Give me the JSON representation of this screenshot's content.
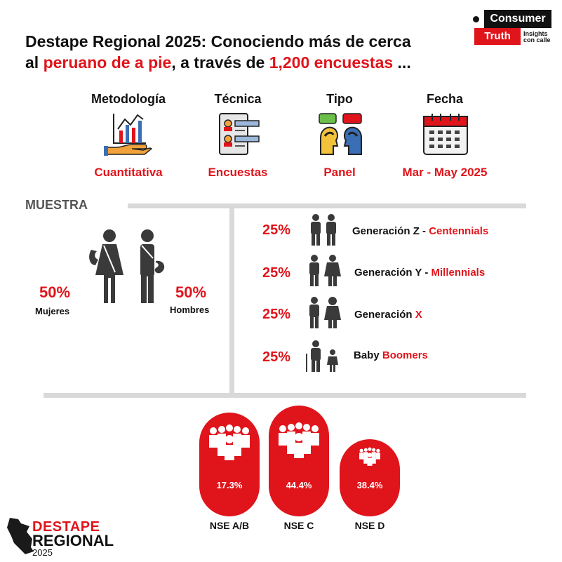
{
  "title": {
    "line1": "Destape Regional 2025: Conociendo más de cerca",
    "line2_pre": "al ",
    "line2_red1": "peruano de a pie",
    "line2_mid": ", a través de ",
    "line2_red2": "1,200 encuestas",
    "line2_post": " ..."
  },
  "logo": {
    "top": "Consumer",
    "bottom": "Truth",
    "tagline": "Insights con calle"
  },
  "methodology": [
    {
      "label": "Metodología",
      "value": "Cuantitativa",
      "icon": "chart-hand-icon"
    },
    {
      "label": "Técnica",
      "value": "Encuestas",
      "icon": "survey-form-icon"
    },
    {
      "label": "Tipo",
      "value": "Panel",
      "icon": "dialogue-heads-icon"
    },
    {
      "label": "Fecha",
      "value": "Mar - May 2025",
      "icon": "calendar-icon"
    }
  ],
  "muestra": {
    "title": "MUESTRA",
    "women": {
      "pct": "50%",
      "label": "Mujeres"
    },
    "men": {
      "pct": "50%",
      "label": "Hombres"
    },
    "generations": [
      {
        "pct": "25%",
        "label": "Generación Z - ",
        "highlight": "Centennials"
      },
      {
        "pct": "25%",
        "label": "Generación Y - ",
        "highlight": "Millennials"
      },
      {
        "pct": "25%",
        "label": "Generación ",
        "highlight": "X"
      },
      {
        "pct": "25%",
        "label": "Baby ",
        "highlight": "Boomers"
      }
    ]
  },
  "nse": [
    {
      "label": "NSE A/B",
      "pct": "17.3%"
    },
    {
      "label": "NSE C",
      "pct": "44.4%"
    },
    {
      "label": "NSE D",
      "pct": "38.4%"
    }
  ],
  "brand": {
    "line1": "DESTAPE",
    "line2": "REGIONAL",
    "line3": "2025"
  },
  "colors": {
    "accent": "#e0141b",
    "divider": "#d9d9d9",
    "icon_gray": "#4a4a4a"
  }
}
